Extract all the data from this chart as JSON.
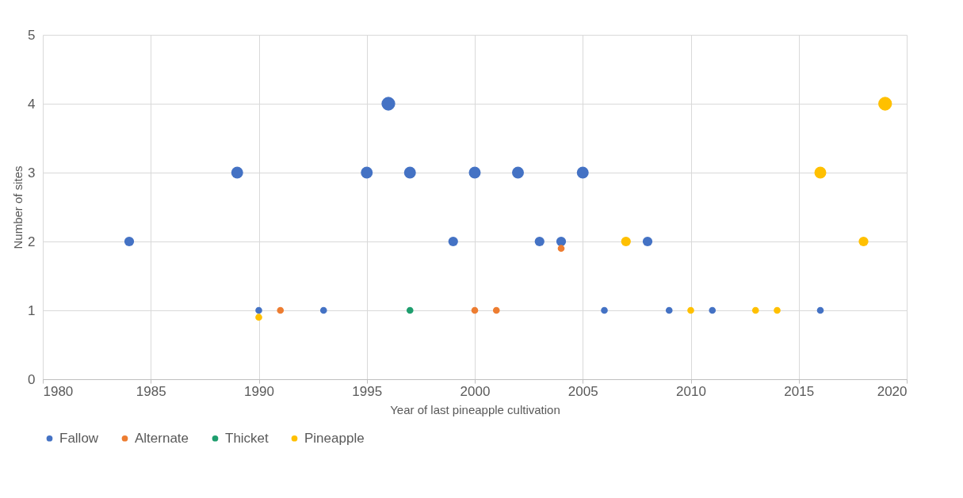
{
  "chart_data": {
    "type": "bubble",
    "xlabel": "Year of last pineapple cultivation",
    "ylabel": "Number of sites",
    "xlim": [
      1980,
      2020
    ],
    "xticks": [
      1980,
      1985,
      1990,
      1995,
      2000,
      2005,
      2010,
      2015,
      2020
    ],
    "ylim": [
      0,
      5
    ],
    "yticks": [
      0,
      1,
      2,
      3,
      4,
      5
    ],
    "grid": true,
    "legend": "bottom",
    "series": [
      {
        "name": "Fallow",
        "color": "#4472c4",
        "x": [
          1984,
          1989,
          1990,
          1993,
          1995,
          1996,
          1997,
          1999,
          2000,
          2002,
          2003,
          2004,
          2005,
          2006,
          2008,
          2009,
          2011,
          2016
        ],
        "values": [
          2,
          3,
          1,
          1,
          3,
          4,
          3,
          2,
          3,
          3,
          2,
          2,
          3,
          1,
          2,
          1,
          1,
          1
        ],
        "sizes": [
          0.5,
          0.75,
          0.25,
          0.25,
          0.75,
          1,
          0.75,
          0.5,
          0.75,
          0.75,
          0.5,
          0.5,
          0.75,
          0.25,
          0.5,
          0.25,
          0.25,
          0.25
        ]
      },
      {
        "name": "Alternate",
        "color": "#ed7d31",
        "x": [
          1991,
          2000,
          2001,
          2004
        ],
        "values": [
          1,
          1,
          1,
          1.9
        ],
        "sizes": [
          0.25,
          0.25,
          0.25,
          0.25
        ]
      },
      {
        "name": "Thicket",
        "color": "#1e9e6e",
        "x": [
          1997
        ],
        "values": [
          1
        ],
        "sizes": [
          0.25
        ]
      },
      {
        "name": "Pineapple",
        "color": "#ffc000",
        "x": [
          1990,
          2007,
          2010,
          2013,
          2014,
          2016,
          2018,
          2019
        ],
        "values": [
          0.9,
          2,
          1,
          1,
          1,
          3,
          2,
          4
        ],
        "sizes": [
          0.25,
          0.5,
          0.25,
          0.25,
          0.25,
          0.75,
          0.5,
          1
        ]
      }
    ]
  }
}
